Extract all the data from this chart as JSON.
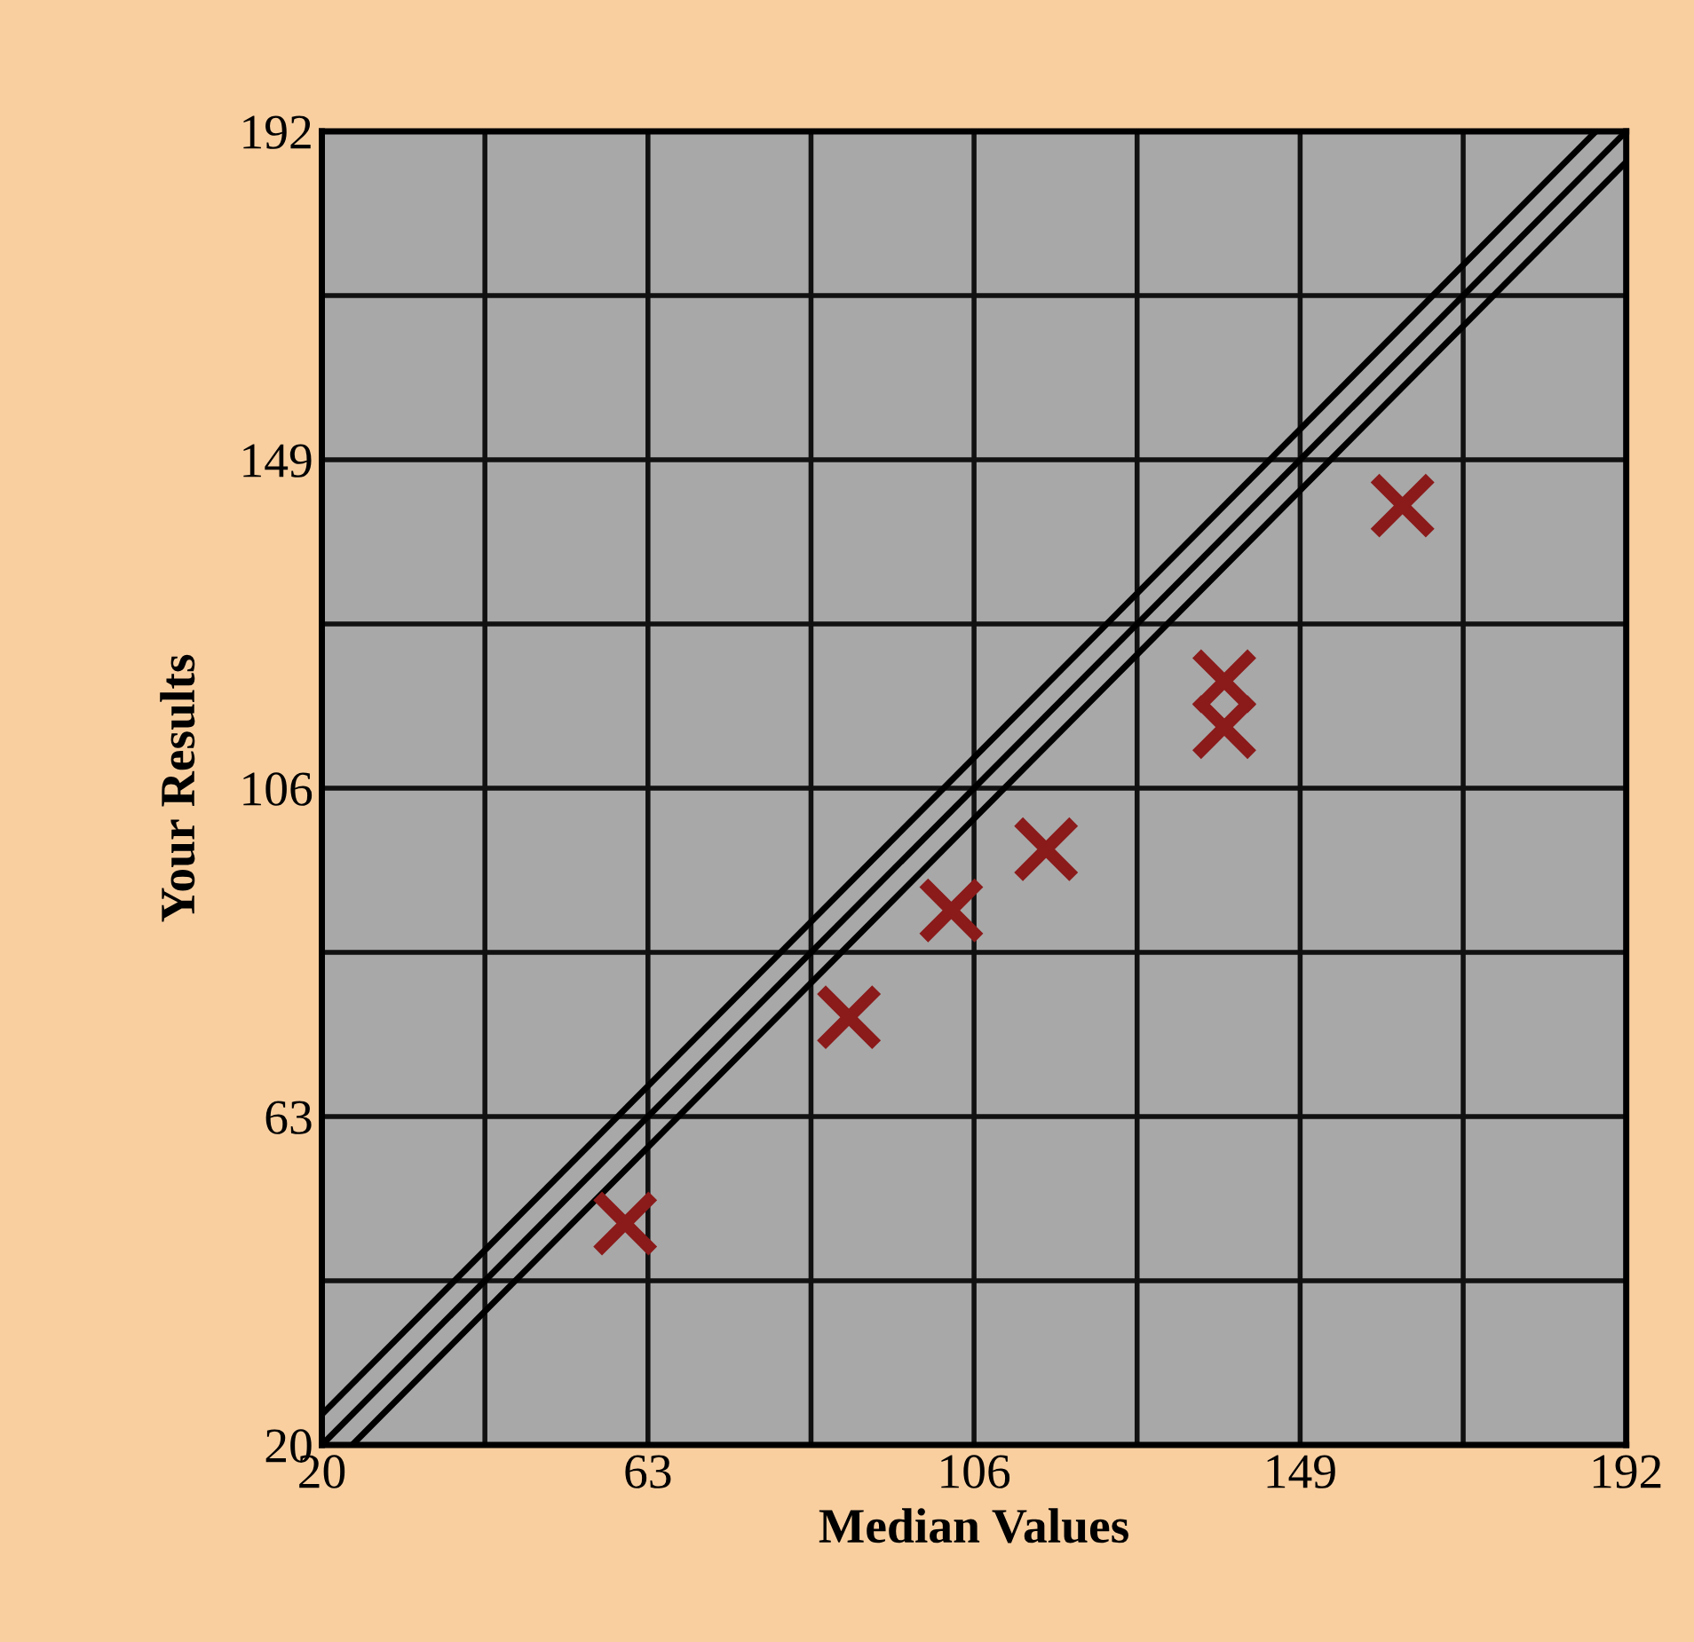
{
  "chart_data": {
    "type": "scatter",
    "xlabel": "Median Values",
    "ylabel": "Your Results",
    "xlim": [
      20,
      192
    ],
    "ylim": [
      20,
      192
    ],
    "xticks": [
      20,
      {
        "value": 41.5,
        "label": null
      },
      63,
      {
        "value": 84.5,
        "label": null
      },
      106,
      {
        "value": 127.5,
        "label": null
      },
      149,
      {
        "value": 170.5,
        "label": null
      },
      192
    ],
    "yticks": [
      20,
      {
        "value": 41.5,
        "label": null
      },
      63,
      {
        "value": 84.5,
        "label": null
      },
      106,
      {
        "value": 127.5,
        "label": null
      },
      149,
      {
        "value": 170.5,
        "label": null
      },
      192
    ],
    "grid": true,
    "series": [
      {
        "type": "line",
        "marker": "none",
        "color": "#000000",
        "x": [
          20,
          188
        ],
        "values": [
          24,
          192
        ]
      },
      {
        "type": "line",
        "marker": "none",
        "color": "#000000",
        "x": [
          20,
          192
        ],
        "values": [
          20,
          192
        ]
      },
      {
        "type": "line",
        "marker": "none",
        "color": "#000000",
        "x": [
          24,
          192
        ],
        "values": [
          20,
          188
        ]
      },
      {
        "marker": "cross",
        "color": "#8b1a1a",
        "x": [
          60,
          89.5,
          103,
          115.5,
          139,
          139,
          162.5
        ],
        "values": [
          49,
          76,
          90,
          98,
          120,
          114,
          143
        ]
      }
    ]
  }
}
